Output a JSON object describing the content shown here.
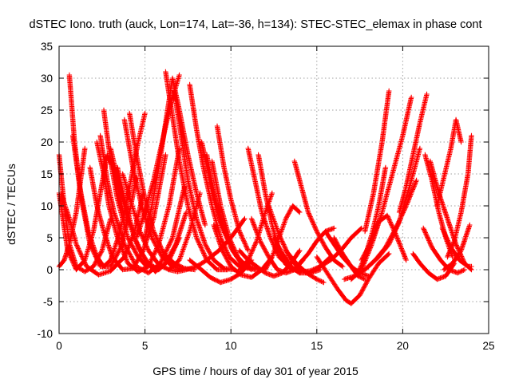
{
  "chart_data": {
    "type": "scatter",
    "title": "dSTEC Iono. truth (auck, Lon=174, Lat=-36, h=134): STEC-STEC_elemax in phase cont",
    "xlabel": "GPS time / hours of day 301 of year 2015",
    "ylabel": "dSTEC  / TECUs",
    "xlim": [
      0,
      25
    ],
    "ylim": [
      -10,
      35
    ],
    "xticks": [
      "0",
      "5",
      "10",
      "15",
      "20",
      "25"
    ],
    "yticks": [
      "-10",
      "-5",
      "0",
      "5",
      "10",
      "15",
      "20",
      "25",
      "30",
      "35"
    ],
    "grid": true,
    "legend": "none",
    "marker": "plus",
    "color": "#ff0000",
    "series": [
      {
        "x": [
          0.0,
          0.3,
          0.6,
          1.0,
          1.5,
          2.0,
          2.5,
          3.0
        ],
        "y": [
          18.0,
          10.0,
          4.0,
          0.5,
          -0.3,
          0.5,
          3.0,
          8.0
        ]
      },
      {
        "x": [
          0.0,
          0.5,
          1.0,
          1.5,
          2.0,
          2.4,
          2.8,
          3.3,
          3.8
        ],
        "y": [
          12.0,
          3.0,
          0.0,
          1.5,
          6.0,
          12.0,
          18.0,
          15.0,
          8.0
        ]
      },
      {
        "x": [
          0.0,
          0.3,
          0.6,
          1.0,
          1.5
        ],
        "y": [
          0.5,
          1.5,
          4.0,
          9.0,
          19.0
        ]
      },
      {
        "x": [
          0.1,
          0.6,
          1.0,
          1.6,
          2.3,
          3.0,
          3.8,
          4.4,
          4.9
        ],
        "y": [
          12.0,
          8.0,
          4.0,
          0.5,
          -0.8,
          -0.2,
          2.0,
          6.0,
          12.0
        ]
      },
      {
        "x": [
          0.6,
          0.9,
          1.3,
          1.8,
          2.4,
          3.0,
          3.6,
          4.1,
          4.5
        ],
        "y": [
          30.5,
          20.0,
          11.0,
          4.0,
          0.5,
          0.5,
          3.5,
          9.0,
          14.5
        ]
      },
      {
        "x": [
          0.8,
          1.2,
          1.7,
          2.2,
          2.6,
          3.0,
          3.5,
          4.0,
          4.6,
          5.0
        ],
        "y": [
          21.0,
          13.0,
          6.0,
          2.0,
          0.5,
          1.5,
          5.5,
          11.5,
          20.0,
          24.5
        ]
      },
      {
        "x": [
          1.8,
          2.2,
          2.6,
          3.1,
          3.7,
          4.3,
          4.9,
          5.5,
          6.2
        ],
        "y": [
          16.0,
          10.0,
          6.0,
          2.0,
          0.0,
          0.2,
          3.0,
          8.0,
          18.0
        ]
      },
      {
        "x": [
          2.2,
          2.6,
          2.9,
          3.4,
          4.0,
          4.6,
          5.2,
          5.8,
          6.4,
          7.0
        ],
        "y": [
          20.0,
          15.0,
          10.0,
          5.0,
          1.0,
          -0.3,
          0.5,
          4.0,
          10.0,
          19.0
        ]
      },
      {
        "x": [
          2.4,
          2.8,
          3.2,
          3.8,
          4.5,
          5.2,
          5.9,
          6.6,
          7.3
        ],
        "y": [
          21.0,
          14.0,
          9.0,
          4.0,
          0.5,
          -0.5,
          1.0,
          5.0,
          13.0
        ]
      },
      {
        "x": [
          2.6,
          3.0,
          3.4,
          4.0,
          4.6,
          5.1
        ],
        "y": [
          25.0,
          17.0,
          11.0,
          5.0,
          2.0,
          0.5
        ]
      },
      {
        "x": [
          3.0,
          3.5,
          4.0,
          4.6,
          5.2,
          5.8,
          6.4,
          7.0
        ],
        "y": [
          19.0,
          13.0,
          8.0,
          3.5,
          1.0,
          0.0,
          1.5,
          5.0
        ]
      },
      {
        "x": [
          3.4,
          3.9,
          4.4,
          5.0,
          5.6,
          6.2,
          6.8,
          7.4
        ],
        "y": [
          16.0,
          10.0,
          5.0,
          1.5,
          -0.3,
          1.0,
          4.0,
          9.0
        ]
      },
      {
        "x": [
          3.7,
          4.2,
          4.7,
          5.2,
          5.8,
          6.4,
          7.0,
          7.6,
          8.2
        ],
        "y": [
          15.0,
          10.5,
          6.0,
          3.0,
          0.8,
          0.0,
          1.5,
          6.0,
          12.0
        ]
      },
      {
        "x": [
          3.8,
          4.3,
          4.8,
          5.4,
          6.0,
          6.6,
          7.2
        ],
        "y": [
          23.5,
          16.0,
          10.0,
          5.0,
          2.0,
          0.5,
          0.0
        ]
      },
      {
        "x": [
          4.1,
          4.5,
          5.0,
          5.5,
          6.1,
          6.7,
          7.3,
          7.9
        ],
        "y": [
          24.5,
          18.0,
          11.0,
          6.0,
          2.5,
          1.0,
          0.2,
          0.0
        ]
      },
      {
        "x": [
          4.5,
          5.0,
          5.5,
          6.0,
          6.5,
          7.0
        ],
        "y": [
          5.0,
          9.0,
          14.0,
          20.0,
          26.0,
          30.5
        ]
      },
      {
        "x": [
          5.0,
          5.4,
          5.8,
          6.2,
          6.6,
          7.0,
          7.5,
          8.0,
          8.5
        ],
        "y": [
          5.0,
          10.0,
          16.0,
          23.0,
          30.0,
          25.0,
          18.0,
          12.0,
          7.0
        ]
      },
      {
        "x": [
          6.2,
          6.6,
          7.0,
          7.5,
          8.0,
          8.6,
          9.2,
          9.8
        ],
        "y": [
          31.0,
          24.0,
          17.0,
          10.0,
          5.0,
          1.5,
          0.0,
          0.0
        ]
      },
      {
        "x": [
          6.7,
          7.1,
          7.5,
          8.0,
          8.5,
          9.0,
          9.6,
          10.2
        ],
        "y": [
          28.0,
          21.0,
          14.0,
          8.0,
          4.0,
          1.5,
          0.2,
          0.0
        ]
      },
      {
        "x": [
          6.4,
          6.9,
          7.4,
          8.0,
          8.6,
          9.3,
          10.0,
          10.8
        ],
        "y": [
          0.0,
          -0.3,
          0.0,
          0.5,
          1.5,
          3.0,
          5.0,
          8.0
        ]
      },
      {
        "x": [
          7.6,
          8.0,
          8.4,
          8.9,
          9.4,
          9.9,
          10.5,
          11.0
        ],
        "y": [
          29.0,
          22.0,
          16.0,
          10.0,
          5.0,
          2.0,
          0.5,
          0.2
        ]
      },
      {
        "x": [
          8.3,
          8.7,
          9.1,
          9.6,
          10.1,
          10.6,
          11.2
        ],
        "y": [
          20.0,
          15.0,
          10.0,
          6.0,
          3.0,
          1.0,
          0.0
        ]
      },
      {
        "x": [
          8.6,
          9.0,
          9.5,
          10.0,
          10.5,
          11.0,
          11.6
        ],
        "y": [
          18.0,
          12.0,
          7.0,
          3.5,
          1.5,
          0.5,
          0.0
        ]
      },
      {
        "x": [
          8.9,
          9.4,
          9.9,
          10.4,
          10.9,
          11.4
        ],
        "y": [
          17.0,
          10.0,
          5.0,
          2.0,
          0.5,
          0.0
        ]
      },
      {
        "x": [
          9.2,
          9.6,
          10.0,
          10.5,
          11.0
        ],
        "y": [
          22.5,
          16.0,
          11.0,
          6.0,
          3.0
        ]
      },
      {
        "x": [
          7.6,
          8.2,
          8.8,
          9.4,
          10.0,
          10.6,
          11.2
        ],
        "y": [
          1.5,
          0.2,
          -1.2,
          -2.0,
          -1.5,
          -0.5,
          1.5
        ]
      },
      {
        "x": [
          9.0,
          9.5,
          10.0,
          10.6,
          11.2,
          11.8,
          12.4
        ],
        "y": [
          7.0,
          3.0,
          0.5,
          -0.8,
          -1.2,
          0.0,
          2.0
        ]
      },
      {
        "x": [
          10.5,
          11.0,
          11.5,
          12.0,
          12.4
        ],
        "y": [
          0.0,
          1.5,
          4.5,
          9.0,
          12.0
        ]
      },
      {
        "x": [
          11.0,
          11.4,
          11.8,
          12.3,
          12.8,
          13.4,
          14.0
        ],
        "y": [
          19.0,
          14.0,
          9.0,
          5.0,
          2.0,
          0.5,
          -0.5
        ]
      },
      {
        "x": [
          11.6,
          12.0,
          12.4,
          12.8,
          13.2,
          13.6
        ],
        "y": [
          18.0,
          12.0,
          7.0,
          3.0,
          0.8,
          0.0
        ]
      },
      {
        "x": [
          10.5,
          11.0,
          11.5,
          12.0,
          12.5,
          13.0,
          13.5,
          14.0
        ],
        "y": [
          3.0,
          1.5,
          0.5,
          -0.5,
          -1.0,
          -0.5,
          1.0,
          3.0
        ]
      },
      {
        "x": [
          11.2,
          11.7,
          12.2,
          12.7,
          13.2,
          13.7,
          14.2
        ],
        "y": [
          8.0,
          4.5,
          2.0,
          0.0,
          -0.5,
          0.0,
          1.5
        ]
      },
      {
        "x": [
          12.0,
          12.4,
          12.8,
          13.2,
          13.6,
          14.0
        ],
        "y": [
          0.0,
          2.0,
          5.0,
          8.0,
          10.0,
          9.0
        ]
      },
      {
        "x": [
          12.2,
          12.8,
          13.4,
          14.0,
          14.6,
          15.2
        ],
        "y": [
          10.0,
          5.5,
          2.0,
          0.0,
          -0.5,
          0.0
        ]
      },
      {
        "x": [
          12.5,
          13.0,
          13.5,
          14.0,
          14.6,
          15.2,
          15.8
        ],
        "y": [
          5.0,
          2.5,
          0.5,
          -0.5,
          -0.5,
          0.5,
          2.0
        ]
      },
      {
        "x": [
          13.7,
          14.1,
          14.5,
          15.0,
          15.5,
          16.0,
          16.5
        ],
        "y": [
          17.0,
          13.0,
          9.0,
          6.0,
          3.5,
          1.5,
          0.5
        ]
      },
      {
        "x": [
          13.2,
          13.8,
          14.4,
          15.0,
          15.4
        ],
        "y": [
          3.0,
          1.0,
          -0.5,
          -1.5,
          -2.0
        ]
      },
      {
        "x": [
          14.0,
          14.6,
          15.2,
          15.8,
          16.4,
          17.0,
          17.6
        ],
        "y": [
          -0.3,
          -0.2,
          0.5,
          1.5,
          3.0,
          5.0,
          6.5
        ]
      },
      {
        "x": [
          14.0,
          14.5,
          15.0,
          15.5,
          16.0
        ],
        "y": [
          1.0,
          2.5,
          4.5,
          6.0,
          6.5
        ]
      },
      {
        "x": [
          15.0,
          15.6,
          16.2,
          16.7,
          17.0,
          17.5,
          18.0,
          18.6,
          19.2
        ],
        "y": [
          2.0,
          -0.5,
          -3.0,
          -4.8,
          -5.3,
          -4.0,
          -1.5,
          1.0,
          2.5
        ]
      },
      {
        "x": [
          15.5,
          16.0,
          16.5,
          17.0,
          17.5,
          18.0
        ],
        "y": [
          6.0,
          4.0,
          2.0,
          0.5,
          -0.5,
          -1.0
        ]
      },
      {
        "x": [
          16.0,
          16.5,
          17.0,
          17.4,
          17.8
        ],
        "y": [
          5.0,
          2.5,
          0.5,
          -1.0,
          -1.5
        ]
      },
      {
        "x": [
          17.0,
          17.4,
          17.8,
          18.2,
          18.6,
          19.0
        ],
        "y": [
          -1.5,
          -0.5,
          2.0,
          5.5,
          10.0,
          16.0
        ]
      },
      {
        "x": [
          16.6,
          17.2,
          17.8,
          18.4,
          19.0,
          19.6,
          20.2,
          20.8
        ],
        "y": [
          -1.5,
          -1.0,
          0.0,
          1.5,
          3.5,
          6.5,
          10.0,
          14.0
        ]
      },
      {
        "x": [
          17.6,
          18.2,
          18.8,
          19.4,
          20.0,
          20.5
        ],
        "y": [
          0.0,
          4.0,
          9.0,
          15.0,
          21.0,
          27.0
        ]
      },
      {
        "x": [
          17.8,
          18.3,
          18.8,
          19.2
        ],
        "y": [
          6.0,
          12.0,
          20.0,
          28.0
        ]
      },
      {
        "x": [
          17.6,
          18.1,
          18.6,
          19.1,
          19.6,
          20.2
        ],
        "y": [
          1.5,
          4.0,
          7.5,
          8.5,
          5.5,
          1.5
        ]
      },
      {
        "x": [
          18.0,
          18.6,
          19.2,
          19.8,
          20.4,
          21.0
        ],
        "y": [
          0.5,
          2.0,
          4.0,
          7.5,
          13.0,
          19.0
        ]
      },
      {
        "x": [
          19.8,
          20.2,
          20.6,
          21.0,
          21.4
        ],
        "y": [
          9.0,
          13.0,
          18.0,
          23.0,
          27.5
        ]
      },
      {
        "x": [
          20.6,
          21.0,
          21.5,
          22.0,
          22.5,
          23.0
        ],
        "y": [
          2.5,
          1.0,
          -0.5,
          -1.5,
          -1.0,
          1.0
        ]
      },
      {
        "x": [
          21.3,
          21.7,
          22.1,
          22.5,
          22.9
        ],
        "y": [
          18.0,
          14.0,
          9.0,
          5.0,
          2.0
        ]
      },
      {
        "x": [
          21.2,
          21.7,
          22.2,
          22.7,
          23.2,
          23.6
        ],
        "y": [
          6.5,
          3.5,
          1.5,
          0.0,
          -0.5,
          0.0
        ]
      },
      {
        "x": [
          21.6,
          22.1,
          22.6,
          23.1,
          23.6,
          24.0
        ],
        "y": [
          17.0,
          12.0,
          8.0,
          4.0,
          1.0,
          0.0
        ]
      },
      {
        "x": [
          22.3,
          22.8,
          23.3,
          23.8,
          24.0
        ],
        "y": [
          6.5,
          3.5,
          1.5,
          0.5,
          0.5
        ]
      },
      {
        "x": [
          22.0,
          22.4,
          22.8,
          23.1,
          23.4
        ],
        "y": [
          10.0,
          14.5,
          19.0,
          23.5,
          20.0
        ]
      },
      {
        "x": [
          22.6,
          23.0,
          23.4,
          23.8,
          24.0
        ],
        "y": [
          2.0,
          4.5,
          9.0,
          15.0,
          21.0
        ]
      },
      {
        "x": [
          22.4,
          22.9,
          23.4,
          23.9
        ],
        "y": [
          0.0,
          1.0,
          3.0,
          7.0
        ]
      }
    ]
  }
}
